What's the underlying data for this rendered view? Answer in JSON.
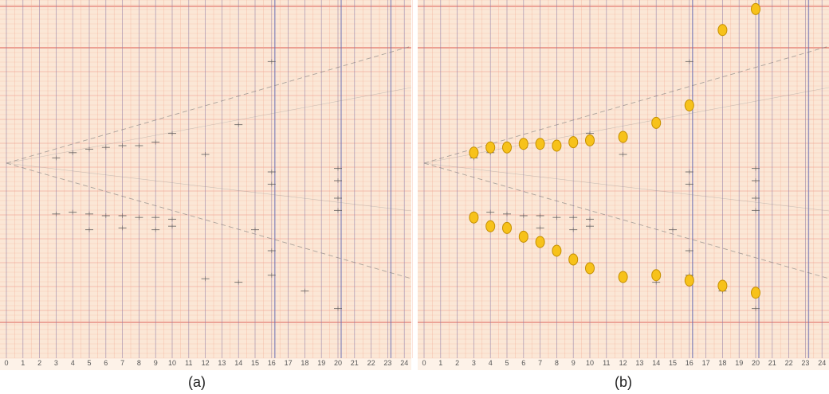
{
  "captions": {
    "left": "(a)",
    "right": "(b)"
  },
  "chart_data": [
    {
      "type": "scatter",
      "panel": "a",
      "description_tick_labels": [
        "0",
        "1",
        "2",
        "3",
        "4",
        "5",
        "6",
        "7",
        "8",
        "9",
        "10",
        "11",
        "12",
        "13",
        "14",
        "15",
        "16",
        "17",
        "18",
        "19",
        "20",
        "21",
        "22",
        "23",
        "24"
      ],
      "xlim": [
        0,
        24.5
      ],
      "grid": true,
      "colors": {
        "paper": "#fbe7d6",
        "minor": "#f3a58c",
        "major": "#d8403a",
        "vertical": "#6a6fb4",
        "marks": "#555555"
      }
    },
    {
      "type": "scatter",
      "panel": "b",
      "description_tick_labels": [
        "0",
        "1",
        "2",
        "3",
        "4",
        "5",
        "6",
        "7",
        "8",
        "9",
        "10",
        "11",
        "12",
        "13",
        "14",
        "15",
        "16",
        "17",
        "18",
        "19",
        "20",
        "21",
        "22",
        "23",
        "24"
      ],
      "xlim": [
        0,
        24.5
      ],
      "grid": true,
      "colors": {
        "paper": "#fbe7d6",
        "minor": "#f3a58c",
        "major": "#d8403a",
        "vertical": "#6a6fb4",
        "marker": "#f7c21a",
        "marker_edge": "#c58f00"
      },
      "series": [
        {
          "x": [
            3,
            4,
            5,
            6,
            7,
            8,
            9,
            10,
            12,
            14,
            16,
            18,
            20
          ],
          "y": [
            0.06,
            0.09,
            0.09,
            0.11,
            0.11,
            0.1,
            0.12,
            0.13,
            0.15,
            0.23,
            0.33,
            0.76,
            0.88
          ]
        },
        {
          "x": [
            3,
            4,
            5,
            6,
            7,
            8,
            9,
            10,
            12,
            14,
            16,
            18,
            20
          ],
          "y": [
            -0.31,
            -0.36,
            -0.37,
            -0.42,
            -0.45,
            -0.5,
            -0.55,
            -0.6,
            -0.65,
            -0.64,
            -0.67,
            -0.7,
            -0.74
          ]
        }
      ]
    }
  ]
}
